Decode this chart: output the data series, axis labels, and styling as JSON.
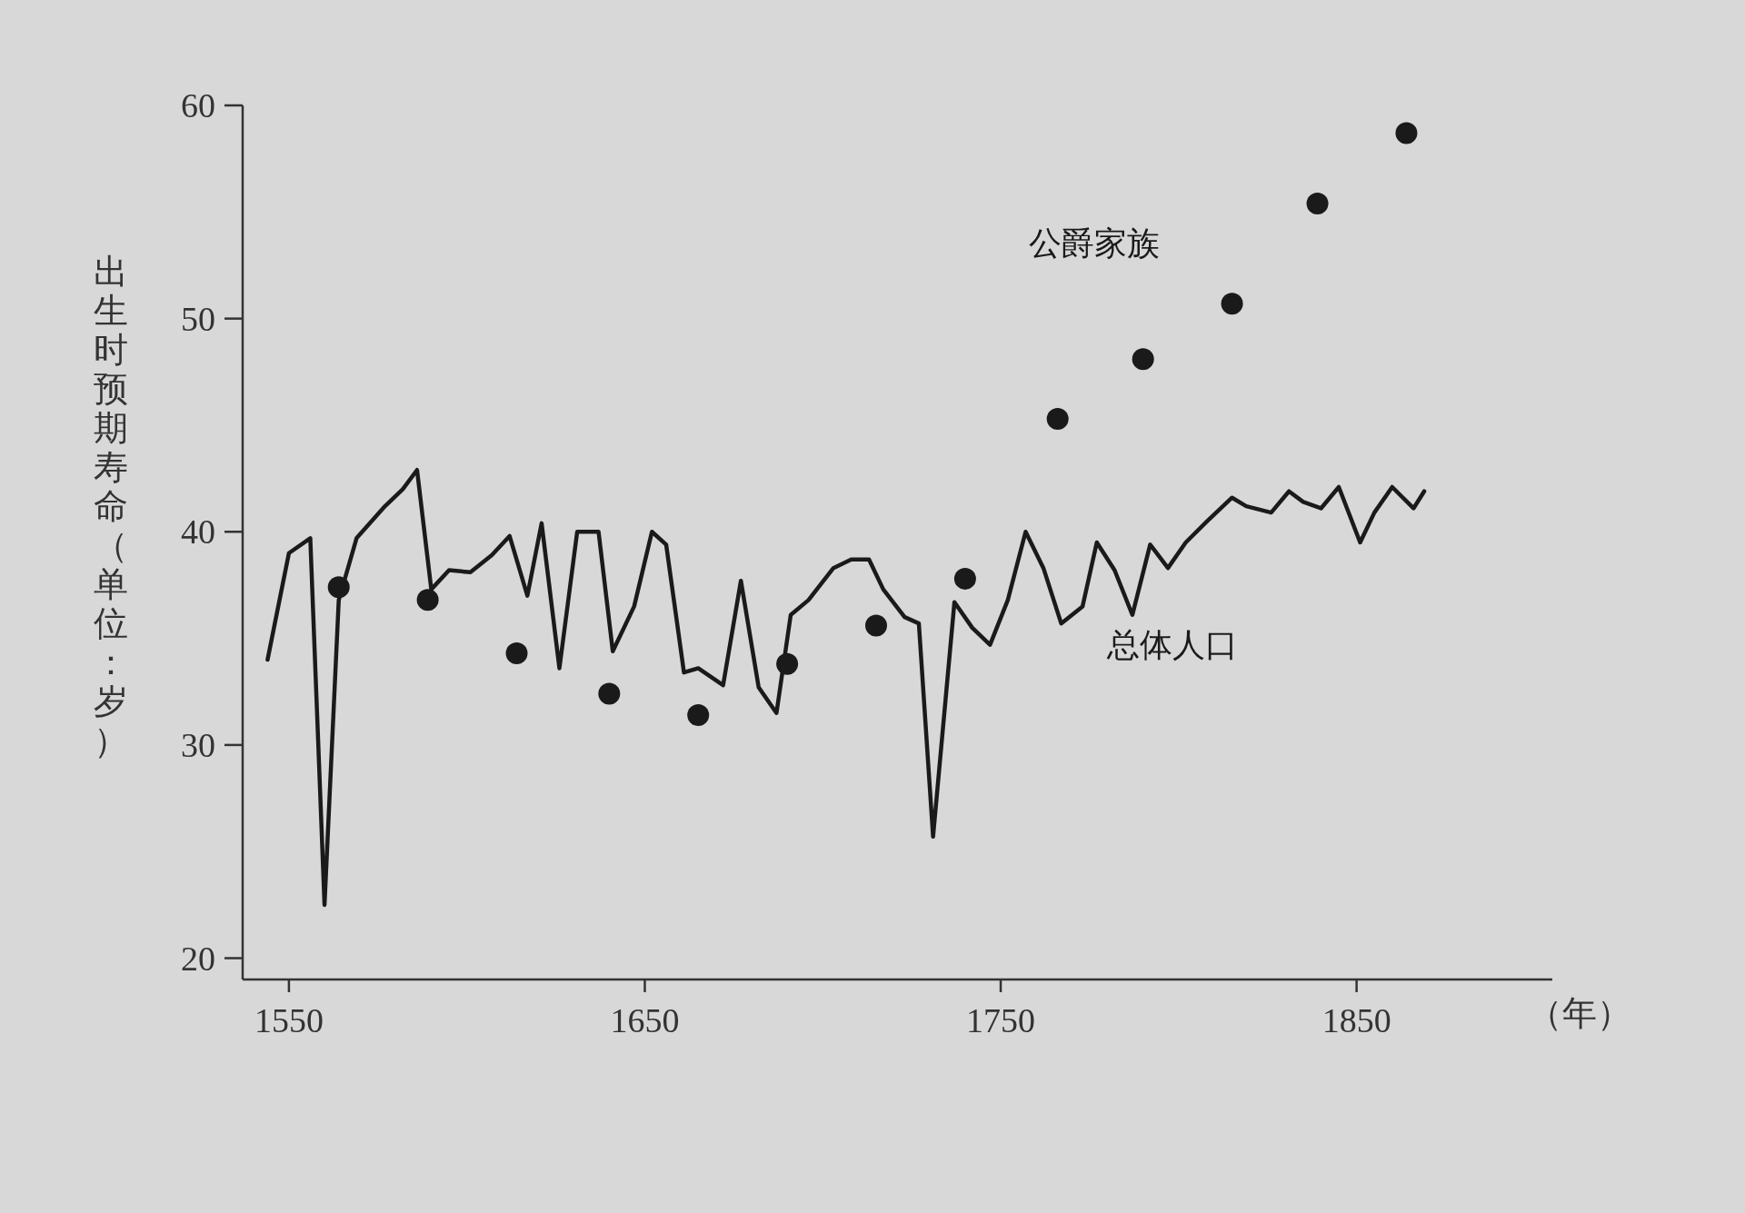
{
  "chart_data": {
    "type": "line",
    "xlabel": "（年）",
    "ylabel": "出生时预期寿命（单位：岁）",
    "xlim": [
      1537,
      1905
    ],
    "xticks": [
      1550,
      1650,
      1750,
      1850
    ],
    "ylim": [
      19,
      60
    ],
    "yticks": [
      20,
      30,
      40,
      50,
      60
    ],
    "legend": false,
    "series": [
      {
        "name": "总体人口",
        "type": "line",
        "color": "#1a1a1a",
        "line_style": "solid",
        "x": [
          1544,
          1550,
          1556,
          1560,
          1564,
          1569,
          1577,
          1582,
          1586,
          1590,
          1595,
          1601,
          1607,
          1612,
          1617,
          1621,
          1626,
          1631,
          1637,
          1641,
          1647,
          1652,
          1656,
          1661,
          1665,
          1672,
          1677,
          1682,
          1687,
          1691,
          1696,
          1703,
          1708,
          1713,
          1717,
          1723,
          1727,
          1731,
          1737,
          1742,
          1747,
          1752,
          1757,
          1762,
          1767,
          1773,
          1777,
          1782,
          1787,
          1792,
          1797,
          1802,
          1808,
          1815,
          1819,
          1826,
          1831,
          1835,
          1840,
          1845,
          1851,
          1855,
          1860,
          1866,
          1869
        ],
        "values": [
          34.0,
          39.0,
          39.7,
          22.5,
          36.8,
          39.7,
          41.2,
          42.0,
          42.9,
          37.3,
          38.2,
          38.1,
          38.9,
          39.8,
          37.0,
          40.4,
          33.6,
          40.0,
          40.0,
          34.4,
          36.5,
          40.0,
          39.4,
          33.4,
          33.6,
          32.8,
          37.7,
          32.7,
          31.5,
          36.1,
          36.8,
          38.3,
          38.7,
          38.7,
          37.3,
          36.0,
          35.7,
          25.7,
          36.7,
          35.5,
          34.7,
          36.8,
          40.0,
          38.3,
          35.7,
          36.5,
          39.5,
          38.2,
          36.1,
          39.4,
          38.3,
          39.5,
          40.5,
          41.6,
          41.2,
          40.9,
          41.9,
          41.4,
          41.1,
          42.1,
          39.5,
          40.9,
          42.1,
          41.1,
          41.9
        ]
      },
      {
        "name": "公爵家族",
        "type": "scatter",
        "marker": "circle",
        "color": "#1a1a1a",
        "x": [
          1564,
          1589,
          1614,
          1640,
          1665,
          1690,
          1715,
          1740,
          1766,
          1790,
          1815,
          1839,
          1864
        ],
        "values": [
          37.4,
          36.8,
          34.3,
          32.4,
          31.4,
          33.8,
          35.6,
          37.8,
          45.3,
          48.1,
          50.7,
          55.4,
          58.7
        ]
      }
    ]
  }
}
